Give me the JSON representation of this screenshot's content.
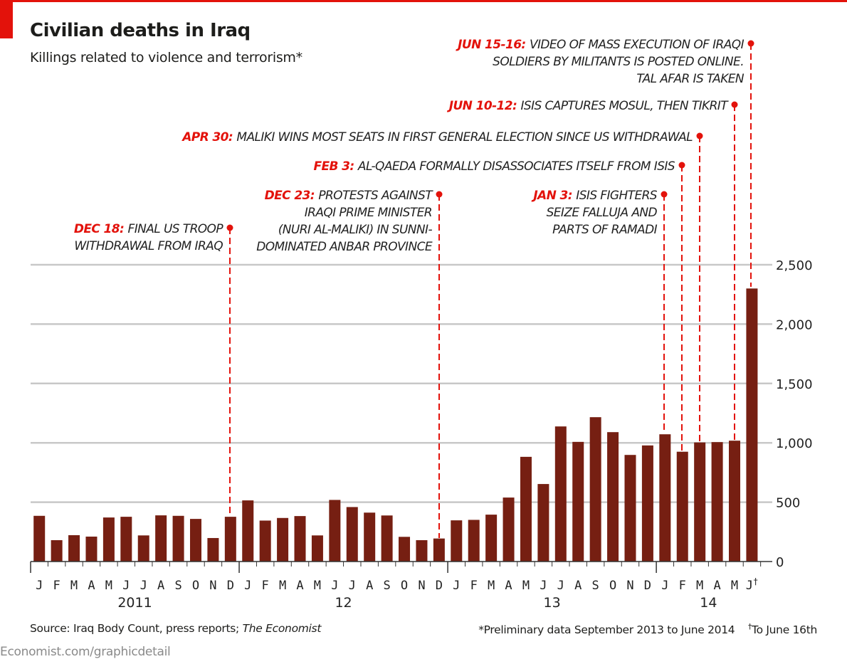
{
  "header": {
    "title": "Civilian deaths in Iraq",
    "subtitle": "Killings related to violence and terrorism*"
  },
  "colors": {
    "accent": "#e3120b",
    "bar": "#761f12",
    "grid": "#c8c8c8",
    "axis": "#333333"
  },
  "chart_data": {
    "type": "bar",
    "title": "Civilian deaths in Iraq",
    "subtitle": "Killings related to violence and terrorism*",
    "xlabel": "",
    "ylabel": "",
    "ylim": [
      0,
      2500
    ],
    "yticks": [
      0,
      500,
      1000,
      1500,
      2000,
      2500
    ],
    "ytick_labels": [
      "0",
      "500",
      "1,000",
      "1,500",
      "2,000",
      "2,500"
    ],
    "y_axis_side": "right",
    "grid": true,
    "categories": [
      "Jan 2011",
      "Feb 2011",
      "Mar 2011",
      "Apr 2011",
      "May 2011",
      "Jun 2011",
      "Jul 2011",
      "Aug 2011",
      "Sep 2011",
      "Oct 2011",
      "Nov 2011",
      "Dec 2011",
      "Jan 2012",
      "Feb 2012",
      "Mar 2012",
      "Apr 2012",
      "May 2012",
      "Jun 2012",
      "Jul 2012",
      "Aug 2012",
      "Sep 2012",
      "Oct 2012",
      "Nov 2012",
      "Dec 2012",
      "Jan 2013",
      "Feb 2013",
      "Mar 2013",
      "Apr 2013",
      "May 2013",
      "Jun 2013",
      "Jul 2013",
      "Aug 2013",
      "Sep 2013",
      "Oct 2013",
      "Nov 2013",
      "Dec 2013",
      "Jan 2014",
      "Feb 2014",
      "Mar 2014",
      "Apr 2014",
      "May 2014",
      "Jun 2014"
    ],
    "month_labels": [
      "J",
      "F",
      "M",
      "A",
      "M",
      "J",
      "J",
      "A",
      "S",
      "O",
      "N",
      "D",
      "J",
      "F",
      "M",
      "A",
      "M",
      "J",
      "J",
      "A",
      "S",
      "O",
      "N",
      "D",
      "J",
      "F",
      "M",
      "A",
      "M",
      "J",
      "J",
      "A",
      "S",
      "O",
      "N",
      "D",
      "J",
      "F",
      "M",
      "A",
      "M",
      "J†"
    ],
    "year_labels": [
      {
        "label": "2011",
        "start_index": 0,
        "end_index": 11
      },
      {
        "label": "12",
        "start_index": 12,
        "end_index": 23
      },
      {
        "label": "13",
        "start_index": 24,
        "end_index": 35
      },
      {
        "label": "14",
        "start_index": 36,
        "end_index": 41
      }
    ],
    "values": [
      385,
      180,
      222,
      210,
      371,
      377,
      220,
      389,
      385,
      359,
      198,
      377,
      515,
      345,
      367,
      383,
      220,
      519,
      459,
      412,
      388,
      208,
      180,
      194,
      347,
      351,
      395,
      539,
      882,
      653,
      1138,
      1008,
      1216,
      1090,
      898,
      978,
      1072,
      925,
      1003,
      1006,
      1018,
      2300
    ],
    "annotations": [
      {
        "index": 11,
        "date": "DEC 18:",
        "lines": [
          "FINAL US TROOP",
          "WITHDRAWAL FROM IRAQ"
        ]
      },
      {
        "index": 23,
        "date": "DEC 23:",
        "lines": [
          "PROTESTS AGAINST",
          "IRAQI PRIME MINISTER",
          "(NURI AL-MALIKI) IN SUNNI-",
          "DOMINATED ANBAR PROVINCE"
        ]
      },
      {
        "index": 36,
        "date": "JAN 3:",
        "lines": [
          "ISIS FIGHTERS",
          "SEIZE FALLUJA AND",
          "PARTS OF RAMADI"
        ]
      },
      {
        "index": 37,
        "date": "FEB 3:",
        "lines": [
          "AL-QAEDA FORMALLY DISASSOCIATES ITSELF FROM ISIS"
        ]
      },
      {
        "index": 38,
        "date": "APR 30:",
        "lines": [
          "MALIKI WINS MOST SEATS IN FIRST GENERAL ELECTION SINCE US WITHDRAWAL"
        ]
      },
      {
        "index": 41,
        "date": "JUN 10-12:",
        "lines": [
          "ISIS CAPTURES MOSUL, THEN TIKRIT"
        ]
      },
      {
        "index": 41,
        "date": "JUN 15-16:",
        "lines": [
          "VIDEO OF MASS EXECUTION OF IRAQI",
          "SOLDIERS BY MILITANTS IS POSTED ONLINE.",
          "TAL AFAR IS TAKEN"
        ]
      }
    ]
  },
  "footer": {
    "source_prefix": "Source: Iraq Body Count, press reports; ",
    "source_italic": "The Economist",
    "note": "*Preliminary data September 2013 to June 2014",
    "dagger": "†",
    "dagger_note": "To June 16th",
    "url": "Economist.com/graphicdetail"
  }
}
